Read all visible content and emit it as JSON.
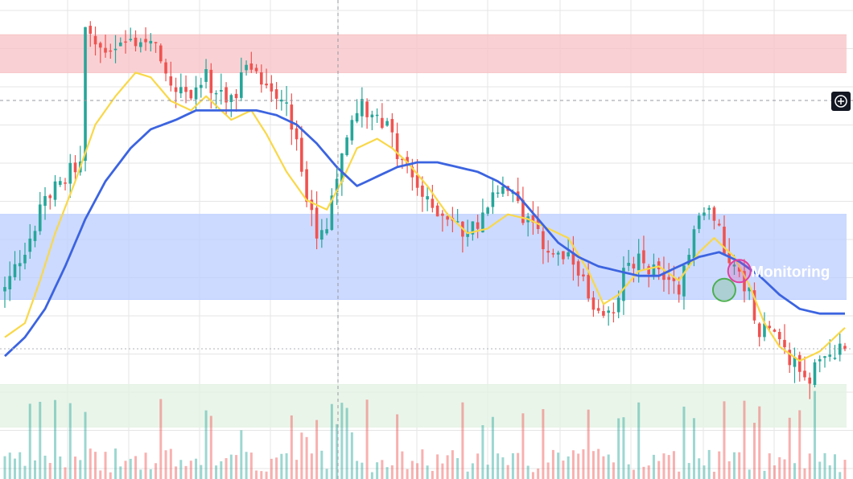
{
  "chart_data": {
    "type": "candlestick",
    "title": "",
    "xlabel": "",
    "ylabel": "",
    "candles_count": 168,
    "ylim": [
      0,
      100
    ],
    "grid": true,
    "colors": {
      "up": "#26a69a",
      "down": "#ef5350",
      "ma_fast": "#f9d849",
      "ma_slow": "#3c64e0",
      "zone_resistance": "#f7c2c6",
      "zone_support": "#bcceff",
      "zone_volume": "#e3f2e3",
      "grid": "#e6e6e6"
    },
    "close_keypoints": [
      [
        0,
        40
      ],
      [
        4,
        49
      ],
      [
        9,
        61
      ],
      [
        15,
        68
      ],
      [
        16,
        94
      ],
      [
        19,
        91
      ],
      [
        23,
        92
      ],
      [
        27,
        93
      ],
      [
        31,
        90
      ],
      [
        32,
        85
      ],
      [
        36,
        81
      ],
      [
        40,
        85
      ],
      [
        44,
        79
      ],
      [
        48,
        86
      ],
      [
        52,
        84
      ],
      [
        56,
        80
      ],
      [
        60,
        60
      ],
      [
        62,
        50
      ],
      [
        64,
        53
      ],
      [
        67,
        68
      ],
      [
        70,
        79
      ],
      [
        74,
        78
      ],
      [
        76,
        74
      ],
      [
        79,
        67
      ],
      [
        82,
        62
      ],
      [
        84,
        58
      ],
      [
        88,
        56
      ],
      [
        92,
        51
      ],
      [
        96,
        58
      ],
      [
        100,
        61
      ],
      [
        104,
        54
      ],
      [
        107,
        50
      ],
      [
        110,
        47
      ],
      [
        114,
        45
      ],
      [
        117,
        34
      ],
      [
        120,
        34
      ],
      [
        123,
        43
      ],
      [
        126,
        46
      ],
      [
        130,
        44
      ],
      [
        134,
        41
      ],
      [
        136,
        49
      ],
      [
        138,
        55
      ],
      [
        140,
        57
      ],
      [
        144,
        47
      ],
      [
        148,
        39
      ],
      [
        150,
        32
      ],
      [
        152,
        31
      ],
      [
        156,
        25
      ],
      [
        160,
        22
      ],
      [
        164,
        26
      ],
      [
        167,
        29
      ]
    ],
    "ma_fast": {
      "name": "",
      "points": [
        [
          0,
          30
        ],
        [
          4,
          33
        ],
        [
          7,
          42
        ],
        [
          10,
          52
        ],
        [
          14,
          63
        ],
        [
          18,
          75
        ],
        [
          22,
          81
        ],
        [
          26,
          86
        ],
        [
          29,
          85
        ],
        [
          33,
          80
        ],
        [
          37,
          78
        ],
        [
          40,
          81
        ],
        [
          45,
          76
        ],
        [
          49,
          78
        ],
        [
          52,
          73
        ],
        [
          56,
          65
        ],
        [
          60,
          59
        ],
        [
          64,
          57
        ],
        [
          67,
          63
        ],
        [
          70,
          70
        ],
        [
          74,
          72
        ],
        [
          77,
          70
        ],
        [
          80,
          67
        ],
        [
          84,
          62
        ],
        [
          88,
          56
        ],
        [
          92,
          52
        ],
        [
          96,
          53
        ],
        [
          100,
          56
        ],
        [
          104,
          55
        ],
        [
          108,
          53
        ],
        [
          112,
          51
        ],
        [
          116,
          44
        ],
        [
          119,
          37
        ],
        [
          122,
          39
        ],
        [
          126,
          44
        ],
        [
          130,
          45
        ],
        [
          134,
          42
        ],
        [
          138,
          48
        ],
        [
          141,
          51
        ],
        [
          145,
          47
        ],
        [
          148,
          41
        ],
        [
          151,
          33
        ],
        [
          154,
          28
        ],
        [
          158,
          25
        ],
        [
          162,
          27
        ],
        [
          165,
          30
        ],
        [
          167,
          32
        ]
      ]
    },
    "ma_slow": {
      "name": "",
      "points": [
        [
          0,
          26
        ],
        [
          4,
          30
        ],
        [
          8,
          36
        ],
        [
          12,
          45
        ],
        [
          16,
          55
        ],
        [
          20,
          63
        ],
        [
          25,
          70
        ],
        [
          29,
          74
        ],
        [
          34,
          76
        ],
        [
          38,
          78
        ],
        [
          42,
          78
        ],
        [
          46,
          78
        ],
        [
          50,
          78
        ],
        [
          54,
          77
        ],
        [
          58,
          75
        ],
        [
          62,
          71
        ],
        [
          66,
          66
        ],
        [
          70,
          62
        ],
        [
          74,
          64
        ],
        [
          78,
          66
        ],
        [
          82,
          67
        ],
        [
          86,
          67
        ],
        [
          90,
          66
        ],
        [
          94,
          65
        ],
        [
          98,
          63
        ],
        [
          102,
          60
        ],
        [
          106,
          55
        ],
        [
          110,
          50
        ],
        [
          114,
          47
        ],
        [
          118,
          45
        ],
        [
          122,
          44
        ],
        [
          126,
          43
        ],
        [
          130,
          43
        ],
        [
          134,
          45
        ],
        [
          138,
          47
        ],
        [
          142,
          48
        ],
        [
          146,
          46
        ],
        [
          150,
          43
        ],
        [
          154,
          39
        ],
        [
          158,
          36
        ],
        [
          162,
          35
        ],
        [
          167,
          35
        ]
      ]
    },
    "zones": [
      {
        "name": "",
        "y_top": 94,
        "y_bottom": 86,
        "color": "#f7c2c6"
      },
      {
        "name": "",
        "y_top": 56,
        "y_bottom": 38,
        "color": "#bcceff"
      },
      {
        "name": "",
        "y_top": 20,
        "y_bottom": 11,
        "color": "#e3f2e3"
      }
    ],
    "annotations": [
      {
        "text": "Monitoring",
        "x_index": 148,
        "y": 44
      }
    ],
    "markers": [
      {
        "x_index": 143,
        "y": 40,
        "color": "#4caf50"
      },
      {
        "x_index": 146,
        "y": 44,
        "color": "#e040a0"
      }
    ]
  }
}
